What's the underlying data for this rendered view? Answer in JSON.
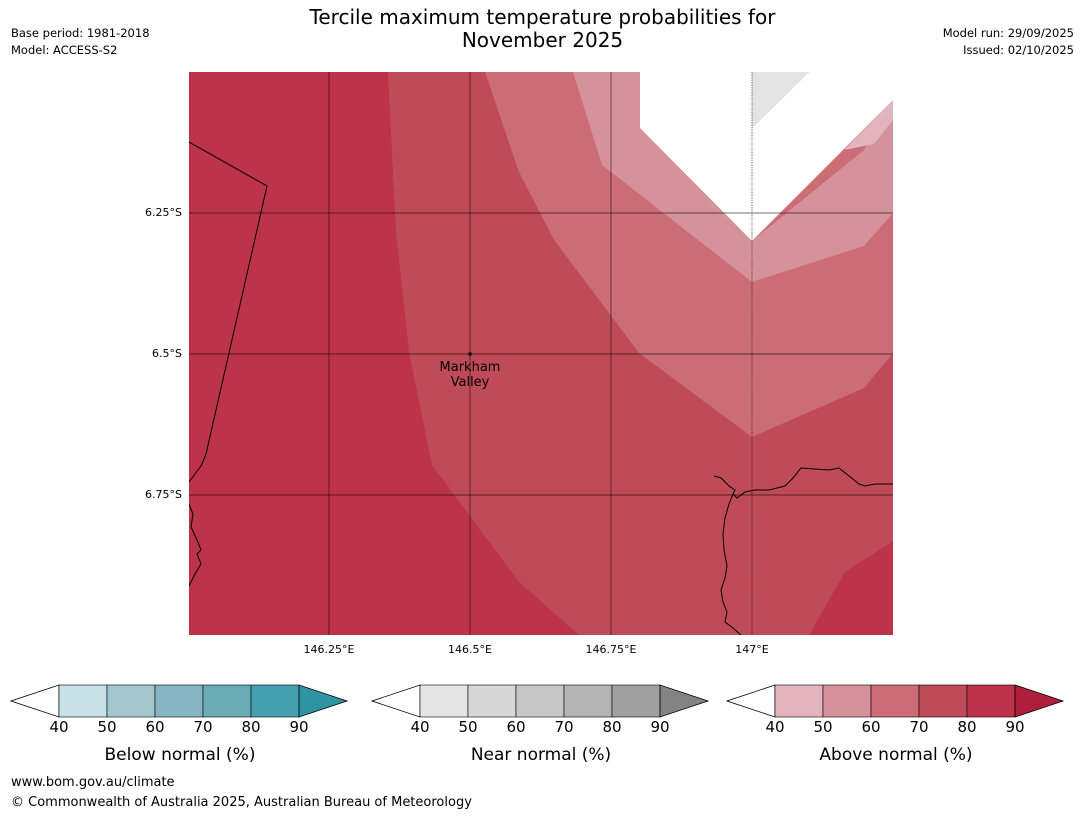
{
  "title_line1": "Tercile maximum temperature probabilities for",
  "title_line2": "November 2025",
  "header_left": {
    "base_period": "Base period: 1981-2018",
    "model": "Model: ACCESS-S2"
  },
  "header_right": {
    "model_run": "Model run: 29/09/2025",
    "issued": "Issued: 02/10/2025"
  },
  "map": {
    "lat_labels": [
      "6.25°S",
      "6.5°S",
      "6.75°S"
    ],
    "lon_labels": [
      "146.25°E",
      "146.5°E",
      "146.75°E",
      "147°E"
    ],
    "place": {
      "line1": "Markham",
      "line2": "Valley"
    },
    "colors": {
      "above_80_90": "#bc334a",
      "above_70_80": "#c04b58",
      "above_60_70": "#cb6c76",
      "above_50_60": "#d6929a",
      "above_40_50": "#e1b5bb",
      "near_40_50": "#e4e4e4"
    }
  },
  "legends": [
    {
      "title": "Below normal (%)",
      "ticks": [
        "40",
        "50",
        "60",
        "70",
        "80",
        "90"
      ],
      "colors": [
        "#c7e1e6",
        "#a4c7cd",
        "#86b4c1",
        "#6aabb8",
        "#45a0ad",
        "#2e93a3"
      ]
    },
    {
      "title": "Near normal (%)",
      "ticks": [
        "40",
        "50",
        "60",
        "70",
        "80",
        "90"
      ],
      "colors": [
        "#e4e4e4",
        "#d7d7d7",
        "#c8c8c8",
        "#b4b4b4",
        "#a0a0a0",
        "#838383"
      ]
    },
    {
      "title": "Above normal (%)",
      "ticks": [
        "40",
        "50",
        "60",
        "70",
        "80",
        "90"
      ],
      "colors": [
        "#e1b5bb",
        "#d6929a",
        "#cb6c76",
        "#c04b58",
        "#bc334a",
        "#b01e3d"
      ]
    }
  ],
  "footer": {
    "url": "www.bom.gov.au/climate",
    "copyright": "© Commonwealth of Australia 2025, Australian Bureau of Meteorology"
  }
}
